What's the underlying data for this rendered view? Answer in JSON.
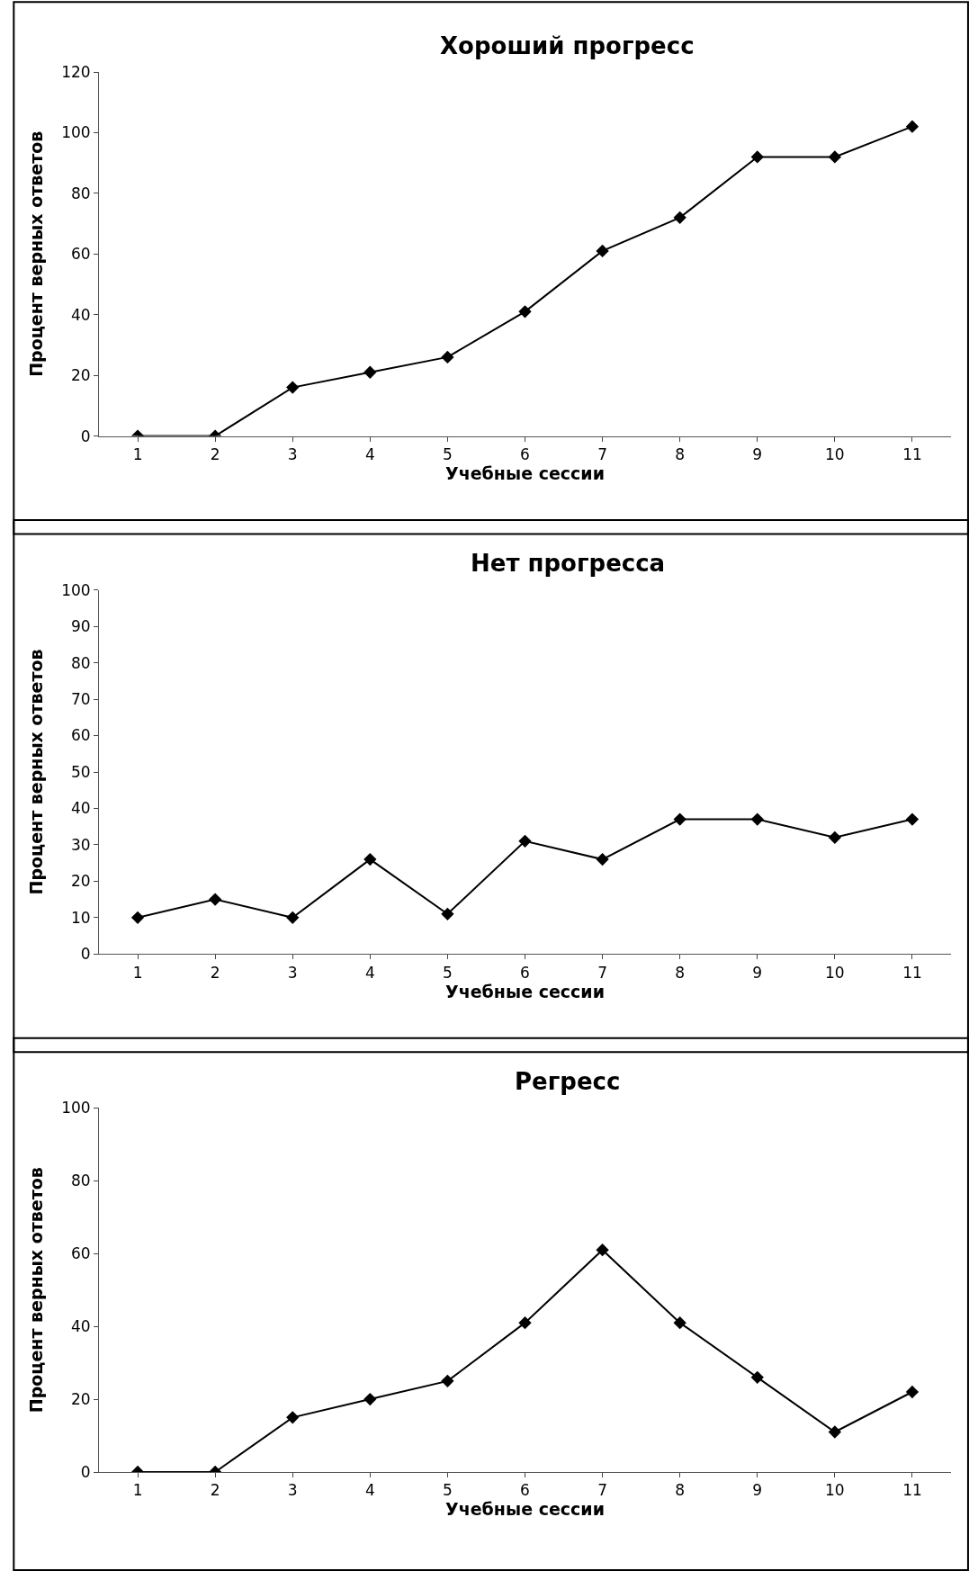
{
  "chart_data": [
    {
      "type": "line",
      "title": "Хороший прогресс",
      "xlabel": "Учебные сессии",
      "ylabel": "Процент верных ответов",
      "categories": [
        "1",
        "2",
        "3",
        "4",
        "5",
        "6",
        "7",
        "8",
        "9",
        "10",
        "11"
      ],
      "values": [
        0,
        0,
        16,
        21,
        26,
        41,
        61,
        72,
        92,
        92,
        102
      ],
      "color": "#000000",
      "marker": "diamond",
      "ylim": [
        0,
        120
      ],
      "yticks": [
        0,
        20,
        40,
        60,
        80,
        100,
        120
      ]
    },
    {
      "type": "line",
      "title": "Нет прогресса",
      "xlabel": "Учебные сессии",
      "ylabel": "Процент верных ответов",
      "categories": [
        "1",
        "2",
        "3",
        "4",
        "5",
        "6",
        "7",
        "8",
        "9",
        "10",
        "11"
      ],
      "values": [
        10,
        15,
        10,
        26,
        11,
        31,
        26,
        37,
        37,
        32,
        37
      ],
      "color": "#000000",
      "marker": "diamond",
      "ylim": [
        0,
        100
      ],
      "yticks": [
        0,
        10,
        20,
        30,
        40,
        50,
        60,
        70,
        80,
        90,
        100
      ]
    },
    {
      "type": "line",
      "title": "Регресс",
      "xlabel": "Учебные сессии",
      "ylabel": "Процент верных ответов",
      "categories": [
        "1",
        "2",
        "3",
        "4",
        "5",
        "6",
        "7",
        "8",
        "9",
        "10",
        "11"
      ],
      "values": [
        0,
        0,
        15,
        20,
        25,
        41,
        61,
        41,
        26,
        11,
        22
      ],
      "color": "#000000",
      "marker": "diamond",
      "ylim": [
        0,
        100
      ],
      "yticks": [
        0,
        20,
        40,
        60,
        80,
        100
      ]
    }
  ]
}
